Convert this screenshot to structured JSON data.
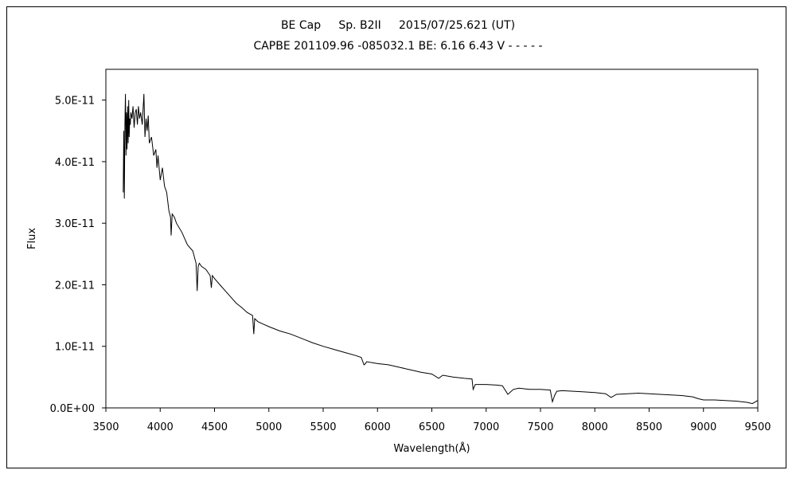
{
  "chart_data": {
    "type": "line",
    "title": "BE Cap     Sp. B2II     2015/07/25.621 (UT)",
    "subtitle": "CAPBE 201109.96 -085032.1 BE: 6.16 6.43 V - - - - -",
    "xlabel": "Wavelength(Å)",
    "ylabel": "Flux",
    "xlim": [
      3500,
      9500
    ],
    "ylim": [
      0,
      5.5e-11
    ],
    "grid": false,
    "x_ticks": [
      3500,
      4000,
      4500,
      5000,
      5500,
      6000,
      6500,
      7000,
      7500,
      8000,
      8500,
      9000,
      9500
    ],
    "x_tick_labels": [
      "3500",
      "4000",
      "4500",
      "5000",
      "5500",
      "6000",
      "6500",
      "7000",
      "7500",
      "8000",
      "8500",
      "9000",
      "9500"
    ],
    "y_ticks": [
      0,
      1e-11,
      2e-11,
      3e-11,
      4e-11,
      5e-11
    ],
    "y_tick_labels": [
      "0.0E+00",
      "1.0E-11",
      "2.0E-11",
      "3.0E-11",
      "4.0E-11",
      "5.0E-11"
    ],
    "series": [
      {
        "color": "#000000",
        "x": [
          3660,
          3665,
          3670,
          3675,
          3680,
          3685,
          3690,
          3695,
          3700,
          3705,
          3710,
          3715,
          3720,
          3725,
          3730,
          3740,
          3750,
          3760,
          3770,
          3780,
          3790,
          3800,
          3810,
          3820,
          3835,
          3850,
          3860,
          3870,
          3880,
          3890,
          3900,
          3920,
          3940,
          3960,
          3970,
          3980,
          4000,
          4020,
          4040,
          4060,
          4080,
          4095,
          4101,
          4110,
          4130,
          4150,
          4200,
          4250,
          4300,
          4330,
          4340,
          4350,
          4360,
          4380,
          4420,
          4460,
          4471,
          4480,
          4500,
          4550,
          4600,
          4650,
          4700,
          4750,
          4800,
          4850,
          4861,
          4870,
          4900,
          4950,
          5000,
          5100,
          5200,
          5300,
          5400,
          5500,
          5600,
          5700,
          5800,
          5850,
          5876,
          5890,
          5900,
          6000,
          6100,
          6200,
          6300,
          6400,
          6500,
          6563,
          6600,
          6700,
          6800,
          6870,
          6880,
          6900,
          7000,
          7100,
          7150,
          7200,
          7250,
          7300,
          7400,
          7500,
          7590,
          7610,
          7630,
          7650,
          7700,
          7800,
          7900,
          8000,
          8100,
          8150,
          8200,
          8300,
          8400,
          8500,
          8600,
          8700,
          8800,
          8900,
          8950,
          9000,
          9100,
          9200,
          9300,
          9400,
          9450,
          9500
        ],
        "y": [
          3.5e-11,
          4.5e-11,
          3.4e-11,
          4.6e-11,
          5.1e-11,
          4.1e-11,
          4.8e-11,
          4.2e-11,
          4.9e-11,
          4.3e-11,
          5e-11,
          4.4e-11,
          4.7e-11,
          4.6e-11,
          4.8e-11,
          4.7e-11,
          4.9e-11,
          4.55e-11,
          4.8e-11,
          4.85e-11,
          4.6e-11,
          4.9e-11,
          4.7e-11,
          4.8e-11,
          4.6e-11,
          5.1e-11,
          4.4e-11,
          4.7e-11,
          4.5e-11,
          4.75e-11,
          4.3e-11,
          4.4e-11,
          4.1e-11,
          4.2e-11,
          3.9e-11,
          4.1e-11,
          3.7e-11,
          3.9e-11,
          3.6e-11,
          3.5e-11,
          3.2e-11,
          3.1e-11,
          2.8e-11,
          3.15e-11,
          3.1e-11,
          3e-11,
          2.85e-11,
          2.65e-11,
          2.55e-11,
          2.35e-11,
          1.9e-11,
          2.3e-11,
          2.35e-11,
          2.3e-11,
          2.25e-11,
          2.15e-11,
          1.95e-11,
          2.15e-11,
          2.1e-11,
          2e-11,
          1.9e-11,
          1.8e-11,
          1.7e-11,
          1.63e-11,
          1.55e-11,
          1.5e-11,
          1.2e-11,
          1.45e-11,
          1.4e-11,
          1.36e-11,
          1.32e-11,
          1.25e-11,
          1.2e-11,
          1.13e-11,
          1.06e-11,
          1e-11,
          9.5e-12,
          9e-12,
          8.5e-12,
          8.2e-12,
          7e-12,
          7.2e-12,
          7.5e-12,
          7.2e-12,
          7e-12,
          6.6e-12,
          6.2e-12,
          5.8e-12,
          5.5e-12,
          4.8e-12,
          5.3e-12,
          5e-12,
          4.8e-12,
          4.7e-12,
          3e-12,
          3.8e-12,
          3.8e-12,
          3.7e-12,
          3.6e-12,
          2.2e-12,
          3e-12,
          3.2e-12,
          3e-12,
          3e-12,
          2.9e-12,
          1e-12,
          2e-12,
          2.7e-12,
          2.8e-12,
          2.7e-12,
          2.6e-12,
          2.5e-12,
          2.3e-12,
          1.7e-12,
          2.2e-12,
          2.3e-12,
          2.4e-12,
          2.3e-12,
          2.2e-12,
          2.1e-12,
          2e-12,
          1.8e-12,
          1.5e-12,
          1.3e-12,
          1.3e-12,
          1.2e-12,
          1.1e-12,
          9e-13,
          7e-13,
          1.2e-12
        ]
      }
    ]
  }
}
